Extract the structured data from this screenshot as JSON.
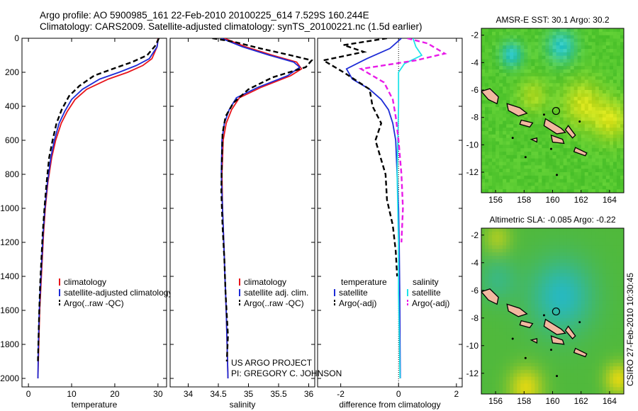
{
  "header": {
    "line1": "Argo profile: AO 5900985_161 22-Feb-2010 20100225_614 7.529S 160.244E",
    "line2": "Climatology: CARS2009. Satellite-adjusted climatology: synTS_20100221.nc (1.5d earlier)"
  },
  "credit": {
    "project": "US ARGO PROJECT",
    "pi": "PI: GREGORY C. JOHNSON",
    "stamp": "CSIRO 27-Feb-2010 10:30:45"
  },
  "colors": {
    "clim": "#e8141b",
    "sat": "#1d2bd6",
    "argo": "#000000",
    "sal_sat": "#1ee3e8",
    "sal_argo": "#e81be8",
    "land": "#f2b8a0"
  },
  "chart_data": [
    {
      "type": "line",
      "id": "temperature",
      "xlabel": "temperature",
      "xlim": [
        -1.5,
        32
      ],
      "xticks": [
        0,
        10,
        20,
        30
      ],
      "ylim": [
        2050,
        0
      ],
      "yticks": [
        0,
        200,
        400,
        600,
        800,
        1000,
        1200,
        1400,
        1600,
        1800,
        2000
      ],
      "series": [
        {
          "name": "climatology",
          "color": "clim",
          "dash": false,
          "x": [
            30,
            29.8,
            28.6,
            26.5,
            23,
            18.5,
            13.5,
            10.8,
            9,
            7.6,
            6.3,
            5.4,
            4.5,
            3.9,
            3.5,
            3.2,
            2.9,
            2.6,
            2.4,
            2.2
          ],
          "y": [
            0,
            50,
            120,
            160,
            200,
            240,
            300,
            360,
            430,
            500,
            600,
            700,
            850,
            1000,
            1150,
            1300,
            1450,
            1600,
            1800,
            2000
          ]
        },
        {
          "name": "satellite-adjusted climatology",
          "color": "sat",
          "dash": false,
          "x": [
            30.1,
            29.8,
            28,
            25,
            21,
            16.5,
            12.5,
            10,
            8.4,
            7.1,
            6,
            5.2,
            4.4,
            3.8,
            3.4,
            3.1,
            2.8,
            2.5,
            2.3,
            2.2
          ],
          "y": [
            0,
            50,
            120,
            160,
            200,
            240,
            300,
            360,
            430,
            500,
            600,
            700,
            850,
            1000,
            1150,
            1300,
            1450,
            1600,
            1800,
            2000
          ]
        },
        {
          "name": "Argo(..raw -QC)",
          "color": "argo",
          "dash": true,
          "x": [
            30.2,
            29.5,
            27.5,
            24,
            19.5,
            15.2,
            11.8,
            9.4,
            7.7,
            6.5,
            5.6,
            4.8,
            4.2,
            3.7,
            3.3,
            3,
            2.7,
            2.5,
            2.2
          ],
          "y": [
            0,
            40,
            100,
            140,
            180,
            220,
            280,
            340,
            420,
            500,
            600,
            700,
            850,
            1000,
            1150,
            1300,
            1450,
            1600,
            1900
          ]
        }
      ],
      "legend": [
        "climatology",
        "satellite-adjusted climatology",
        "Argo(..raw -QC)"
      ]
    },
    {
      "type": "line",
      "id": "salinity",
      "xlabel": "salinity",
      "xlim": [
        33.7,
        36.1
      ],
      "xticks": [
        34,
        34.5,
        35,
        35.5,
        36
      ],
      "xticklabels": [
        "34",
        "34.5",
        "35",
        "35.5",
        "36"
      ],
      "ylim": [
        2050,
        0
      ],
      "series": [
        {
          "name": "climatology",
          "color": "clim",
          "dash": false,
          "x": [
            34.6,
            34.95,
            35.4,
            35.8,
            35.88,
            35.7,
            35.2,
            34.85,
            34.72,
            34.63,
            34.58,
            34.56,
            34.57,
            34.59,
            34.61,
            34.63,
            34.66
          ],
          "y": [
            0,
            50,
            100,
            140,
            180,
            220,
            290,
            350,
            420,
            500,
            600,
            800,
            1000,
            1200,
            1400,
            1600,
            2000
          ]
        },
        {
          "name": "satellite adj. clim.",
          "color": "sat",
          "dash": false,
          "x": [
            34.55,
            34.9,
            35.35,
            35.75,
            35.85,
            35.65,
            35.15,
            34.8,
            34.68,
            34.6,
            34.56,
            34.55,
            34.57,
            34.59,
            34.61,
            34.63,
            34.66
          ],
          "y": [
            0,
            50,
            100,
            140,
            170,
            220,
            290,
            350,
            420,
            500,
            600,
            800,
            1000,
            1200,
            1400,
            1600,
            2000
          ]
        },
        {
          "name": "Argo(..raw -QC)",
          "color": "argo",
          "dash": true,
          "x": [
            34.4,
            34.75,
            35.2,
            35.7,
            36.05,
            35.95,
            35.4,
            35.0,
            34.75,
            34.62,
            34.57,
            34.56,
            34.55,
            34.57,
            34.6,
            34.62,
            34.66,
            34.64
          ],
          "y": [
            0,
            20,
            60,
            100,
            130,
            170,
            230,
            300,
            380,
            460,
            560,
            700,
            900,
            1100,
            1300,
            1500,
            1750,
            1900
          ]
        }
      ],
      "legend": [
        "climatology",
        "satellite adj. clim.",
        "Argo(..raw -QC)"
      ]
    },
    {
      "type": "line",
      "id": "difference",
      "xlabel": "difference from climatology",
      "xlim": [
        -2.8,
        2.2
      ],
      "xticks": [
        -2,
        0,
        2
      ],
      "ylim": [
        2050,
        0
      ],
      "series": [
        {
          "name": "temperature satellite",
          "color": "sat",
          "dash": false,
          "x": [
            0.1,
            -0.3,
            -1.1,
            -1.8,
            -1.6,
            -1.0,
            -0.6,
            -0.35,
            -0.2,
            -0.1,
            -0.05,
            0,
            0.02,
            0.04,
            0.05,
            0.06
          ],
          "y": [
            0,
            60,
            120,
            180,
            240,
            300,
            360,
            420,
            500,
            600,
            800,
            1000,
            1200,
            1500,
            1800,
            2000
          ]
        },
        {
          "name": "temperature Argo(-adj)",
          "color": "argo",
          "dash": true,
          "x": [
            -0.4,
            -1.9,
            -1.2,
            -2.6,
            -1.9,
            -1.0,
            -0.9,
            -0.6,
            -0.8,
            -0.45,
            -0.4,
            -0.2,
            -0.1,
            -0.05
          ],
          "y": [
            0,
            40,
            80,
            130,
            200,
            300,
            400,
            500,
            600,
            800,
            950,
            1100,
            1250,
            1400
          ]
        },
        {
          "name": "salinity satellite",
          "color": "sal_sat",
          "dash": false,
          "x": [
            0.5,
            0.6,
            0.8,
            0.2,
            0,
            0,
            -0.05,
            0,
            0,
            0.03,
            0.05
          ],
          "y": [
            0,
            50,
            100,
            150,
            200,
            400,
            800,
            1200,
            1500,
            1800,
            2000
          ]
        },
        {
          "name": "salinity Argo(-adj)",
          "color": "sal_argo",
          "dash": true,
          "x": [
            0.3,
            1.0,
            1.6,
            0.6,
            -1.3,
            -0.5,
            -0.2,
            -0.1,
            0,
            0.1,
            0.15,
            0.1
          ],
          "y": [
            0,
            30,
            90,
            130,
            180,
            260,
            360,
            460,
            600,
            800,
            1000,
            1200
          ]
        }
      ],
      "legend_headers": [
        "temperature",
        "salinity"
      ],
      "legend": [
        "satellite",
        "Argo(-adj)",
        "satellite",
        "Argo(-adj)"
      ]
    },
    {
      "type": "heatmap",
      "id": "sst_map",
      "title": "AMSR-E SST: 30.1 Argo: 30.2",
      "xlim": [
        155,
        165
      ],
      "ylim": [
        -13.5,
        -1.5
      ],
      "xticks": [
        156,
        158,
        160,
        162,
        164
      ],
      "yticks": [
        -2,
        -4,
        -6,
        -8,
        -10,
        -12
      ],
      "marker": {
        "lon": 160.244,
        "lat": -7.529
      }
    },
    {
      "type": "heatmap",
      "id": "sla_map",
      "title": "Altimetric SLA: -0.085 Argo: -0.22",
      "xlim": [
        155,
        165
      ],
      "ylim": [
        -13.5,
        -1.5
      ],
      "xticks": [
        156,
        158,
        160,
        162,
        164
      ],
      "yticks": [
        -2,
        -4,
        -6,
        -8,
        -10,
        -12
      ],
      "marker": {
        "lon": 160.244,
        "lat": -7.529
      }
    }
  ]
}
